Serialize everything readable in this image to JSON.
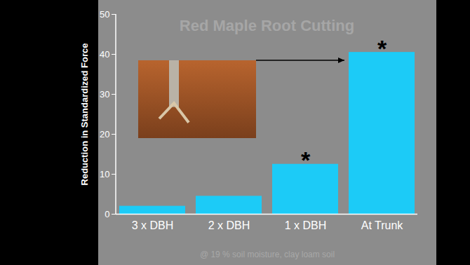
{
  "chart_data": {
    "type": "bar",
    "title": "Red Maple Root Cutting",
    "categories": [
      "3 x DBH",
      "2 x DBH",
      "1 x DBH",
      "At Trunk"
    ],
    "values": [
      2,
      4.5,
      12.5,
      40.5
    ],
    "color": "#1ccbf7",
    "ylabel": "Reduction in Standardized Force",
    "ylim": [
      0,
      50
    ],
    "yticks": [
      0,
      10,
      20,
      30,
      40,
      50
    ],
    "grid": false,
    "annotations": [
      {
        "category": "1 x DBH",
        "text": "*"
      },
      {
        "category": "At Trunk",
        "text": "*"
      }
    ],
    "caption": "@ 19 % soil moisture, clay loam soil"
  }
}
